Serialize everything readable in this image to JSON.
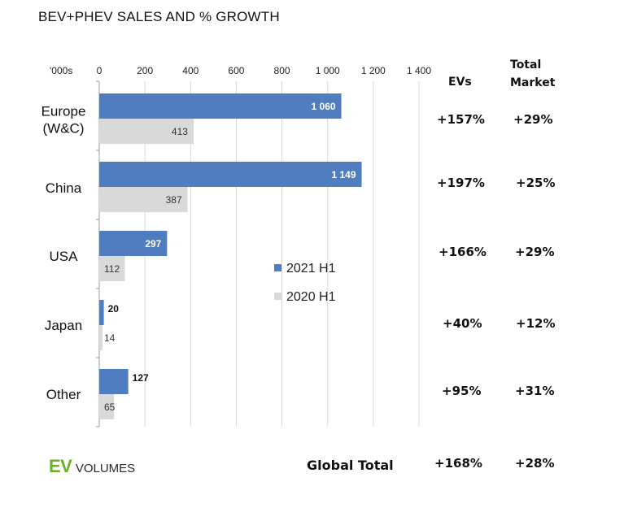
{
  "title": "BEV+PHEV SALES AND % GROWTH",
  "colors": {
    "series_2021": "#4f7dc0",
    "series_2020": "#d9d9d9",
    "brand_green": "#6ab023"
  },
  "columns": {
    "evs": "EVs",
    "total_market": "Total\nMarket"
  },
  "rows": [
    {
      "region": "Europe (W&C)",
      "evs": "+157%",
      "total": "+29%"
    },
    {
      "region": "China",
      "evs": "+197%",
      "total": "+25%"
    },
    {
      "region": "USA",
      "evs": "+166%",
      "total": "+29%"
    },
    {
      "region": "Japan",
      "evs": "+40%",
      "total": "+12%"
    },
    {
      "region": "Other",
      "evs": "+95%",
      "total": "+31%"
    }
  ],
  "global": {
    "label": "Global Total",
    "evs": "+168%",
    "total": "+28%"
  },
  "logo": {
    "ev": "EV",
    "volumes": "VOLUMES"
  },
  "chart_data": {
    "type": "bar",
    "orientation": "horizontal",
    "categories": [
      "Europe\n(W&C)",
      "China",
      "USA",
      "Japan",
      "Other"
    ],
    "series": [
      {
        "name": "2021 H1",
        "values": [
          1060,
          1149,
          297,
          20,
          127
        ],
        "labels": [
          "1 060",
          "1 149",
          "297",
          "20",
          "127"
        ]
      },
      {
        "name": "2020 H1",
        "values": [
          413,
          387,
          112,
          14,
          65
        ],
        "labels": [
          "413",
          "387",
          "112",
          "14",
          "65"
        ]
      }
    ],
    "unit_label": "'000s",
    "xlim": [
      0,
      1400
    ],
    "ticks": [
      0,
      200,
      400,
      600,
      800,
      1000,
      1200,
      1400
    ],
    "tick_labels": [
      "0",
      "200",
      "400",
      "600",
      "800",
      "1 000",
      "1 200",
      "1 400"
    ],
    "grid": true,
    "legend_position": "center"
  }
}
